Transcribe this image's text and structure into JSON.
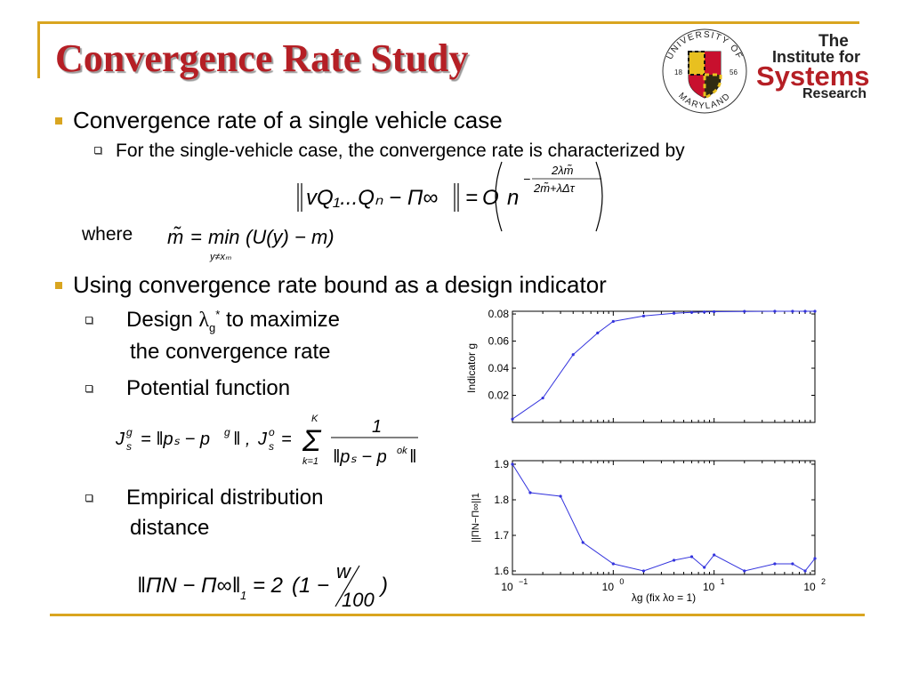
{
  "slide": {
    "title": "Convergence Rate Study",
    "bullets": [
      {
        "text": "Convergence rate of a single vehicle case"
      },
      {
        "text": "Using convergence rate bound as a design indicator"
      }
    ],
    "sub_bullets": [
      {
        "text": "For the single-vehicle case, the convergence rate is characterized by"
      },
      {
        "text_line1": "Design",
        "text_line1b": "to maximize",
        "text_line2": "the convergence rate",
        "symbol": "λ",
        "sub": "g",
        "sup": "*"
      },
      {
        "text": "Potential function"
      },
      {
        "text_line1": "Empirical distribution",
        "text_line2": "distance"
      }
    ],
    "where_label": "where"
  },
  "logo": {
    "seal_top": "UNIVERSITY OF",
    "seal_bottom": "MARYLAND",
    "seal_left": "18",
    "seal_right": "56",
    "isr_line1": "The",
    "isr_line2": "Institute for",
    "isr_line3": "Systems",
    "isr_line4": "Research"
  },
  "colors": {
    "title": "#b51f25",
    "accent": "#d9a520",
    "plot_line": "#3333dd"
  },
  "chart_data": [
    {
      "type": "line",
      "title": "",
      "xlabel": "",
      "ylabel": "Indicator g",
      "xscale": "log",
      "x": [
        0.1,
        0.2,
        0.4,
        0.7,
        1,
        2,
        4,
        6,
        8,
        10,
        20,
        40,
        60,
        80,
        100
      ],
      "y": [
        0.0025,
        0.018,
        0.05,
        0.066,
        0.0745,
        0.0785,
        0.0805,
        0.0812,
        0.0815,
        0.0817,
        0.0819,
        0.082,
        0.082,
        0.082,
        0.082
      ],
      "yticks": [
        "0.02",
        "0.04",
        "0.06",
        "0.08"
      ],
      "ylim": [
        0,
        0.082
      ],
      "xlim": [
        0.1,
        100
      ]
    },
    {
      "type": "line",
      "title": "",
      "xlabel": "λg (fix λo = 1)",
      "ylabel": "||ΠN−Π∞||1",
      "xscale": "log",
      "x": [
        0.1,
        0.15,
        0.3,
        0.5,
        1,
        2,
        4,
        6,
        8,
        10,
        20,
        40,
        60,
        80,
        100
      ],
      "y": [
        1.9,
        1.82,
        1.81,
        1.68,
        1.62,
        1.6,
        1.63,
        1.64,
        1.61,
        1.645,
        1.6,
        1.62,
        1.62,
        1.6,
        1.635
      ],
      "yticks": [
        "1.6",
        "1.7",
        "1.8",
        "1.9"
      ],
      "xticks": [
        {
          "base": "10",
          "exp": "−1"
        },
        {
          "base": "10",
          "exp": "0"
        },
        {
          "base": "10",
          "exp": "1"
        },
        {
          "base": "10",
          "exp": "2"
        }
      ],
      "ylim": [
        1.59,
        1.91
      ],
      "xlim": [
        0.1,
        100
      ]
    }
  ],
  "equations": {
    "eq1": {
      "lhs": "vQ₁...Qₙ − Π∞",
      "op": "=",
      "rhs_O": "O",
      "rhs_n": "n",
      "exp_num": "2λm̃",
      "exp_den": "2m̃+λΔτ",
      "exp_sign": "−"
    },
    "eq2": {
      "lhs": "m̃",
      "op": "=",
      "min": "min",
      "under": "y≠xₘ",
      "body": "(U(y) − m)"
    },
    "eq3": {
      "lhs1": "J",
      "lhs1_sup": "g",
      "lhs1_sub": "s",
      "mid1": "= ‖pₛ − p",
      "mid1_sup": "g",
      "mid1_end": "‖ ,",
      "lhs2": "J",
      "lhs2_sup": "o",
      "lhs2_sub": "s",
      "sum_top": "K",
      "sum_bot": "k=1",
      "frac_num": "1",
      "frac_den": "‖pₛ − p",
      "frac_den_sup": "ok",
      "frac_den_end": "‖"
    },
    "eq4": {
      "lhs": "‖ΠN − Π∞‖",
      "sub": "1",
      "op": "= 2",
      "paren": "(1 −",
      "w": "w",
      "hundred": "100",
      "close": ")"
    }
  }
}
